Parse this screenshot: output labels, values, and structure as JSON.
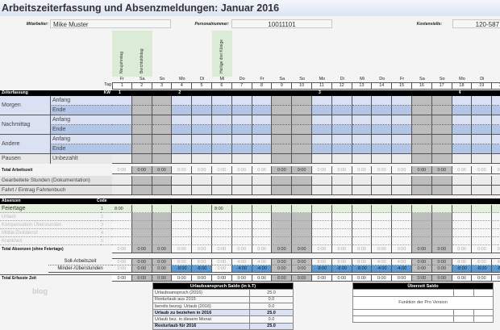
{
  "title": "Arbeitszeiterfassung und Absenzmeldungen: Januar 2016",
  "header": {
    "employee_label": "Mitarbeiter:",
    "employee": "Mike Muster",
    "personnel_label": "Personalnummer:",
    "personnel": "10011101",
    "cost_label": "Kostenstelle:",
    "cost": "120-587"
  },
  "days": {
    "tag_label": "Tag",
    "kw_label": "KW",
    "section": "Zeiterfassung",
    "names": [
      "Fr",
      "Sa",
      "So",
      "Mo",
      "Di",
      "Mi",
      "Do",
      "Fr",
      "Sa",
      "So",
      "Mo",
      "Di",
      "Mi",
      "Do",
      "Fr",
      "Sa",
      "So",
      "Mo",
      "Di",
      "Mi"
    ],
    "numbers": [
      "1",
      "2",
      "3",
      "4",
      "5",
      "6",
      "7",
      "8",
      "9",
      "10",
      "11",
      "12",
      "13",
      "14",
      "15",
      "16",
      "17",
      "18",
      "19",
      "20"
    ],
    "kw": {
      "1": "1",
      "4": "2",
      "11": "3",
      "18": "4"
    },
    "weekend": [
      2,
      3,
      9,
      10,
      16,
      17
    ],
    "holidays": [
      {
        "day": 1,
        "name": "Neujahrstag"
      },
      {
        "day": 2,
        "name": "Berchtoldstag"
      },
      {
        "day": 6,
        "name": "Heilige drei Könige"
      }
    ]
  },
  "time_rows": {
    "groups": [
      "Morgen",
      "Nachmittag",
      "Andere"
    ],
    "start": "Anfang",
    "end": "Ende",
    "pause": "Pausen",
    "pause_sub": "Unbezahlt",
    "total": "Total Arbeitszeit",
    "worked": "Gearbeitete Stunden (Dokumentation)",
    "travel": "Fahrt / Eintrag Fahrtenbuch",
    "zero": "0:00"
  },
  "absences": {
    "header": "Absenzen",
    "code_label": "Code",
    "items": [
      {
        "name": "Feiertage",
        "code": "1"
      },
      {
        "name": "Urlaub",
        "code": "2"
      },
      {
        "name": "Kompensation Überstunden",
        "code": "3"
      },
      {
        "name": "Militär/Zivildienst",
        "code": "4"
      },
      {
        "name": "Krankheit",
        "code": "5"
      }
    ],
    "holiday_values": {
      "1": "8:00",
      "6": "8:00"
    },
    "total": "Total Absenzen (ohne Feiertage)"
  },
  "balance": {
    "soll_label": "Soll-Arbeitszeit",
    "diff_label": "Minder-/Überstunden",
    "total_label": "Total Erfasste Zeit",
    "soll": [
      "0:00",
      "0:00",
      "0:00",
      "8:00",
      "8:00",
      "0:00",
      "4:00",
      "4:00",
      "0:00",
      "0:00",
      "8:00",
      "8:00",
      "8:00",
      "4:00",
      "4:00",
      "0:00",
      "0:00",
      "8:00",
      "8:00",
      "8:00"
    ],
    "diff": [
      "0:00",
      "0:00",
      "0:00",
      "-8:00",
      "-8:00",
      "0:00",
      "-4:00",
      "-4:00",
      "0:00",
      "0:00",
      "-8:00",
      "-8:00",
      "-8:00",
      "-4:00",
      "-4:00",
      "0:00",
      "0:00",
      "-8:00",
      "-8:00",
      "-8:00"
    ]
  },
  "vacation": {
    "title": "Urlaubsanspruch Saldo (in k.T)",
    "rows": [
      {
        "label": "Urlaubsanspruch (2016)",
        "value": "25.0"
      },
      {
        "label": "Resturlaub aus 2015",
        "value": "0.0"
      },
      {
        "label": "bereits bezog. Urlaub (2016)",
        "value": "0.0"
      },
      {
        "label": "Urlaub zu beziehen in 2016",
        "value": "25.0",
        "bold": true
      },
      {
        "label": "Urlaub bez. in diesem Monat",
        "value": "0.0"
      },
      {
        "label": "Resturlaub für 2016",
        "value": "25.0",
        "bold": true
      }
    ]
  },
  "overtime": {
    "title": "Überzeit Saldo",
    "note": "Funktion der Pro Version"
  },
  "watermark": "blog",
  "colors": {
    "blue_light": "#d9e1f2",
    "blue_mid": "#b4c6e7",
    "green": "#e2efda",
    "negative": "#5b9bd5"
  }
}
